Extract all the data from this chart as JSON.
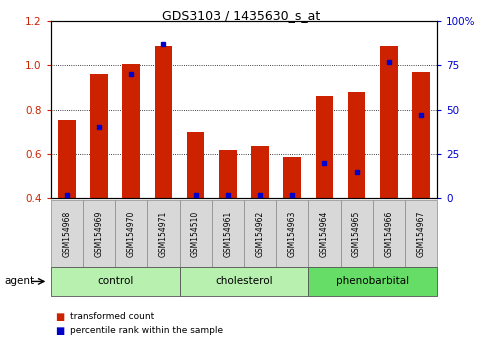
{
  "title": "GDS3103 / 1435630_s_at",
  "samples": [
    "GSM154968",
    "GSM154969",
    "GSM154970",
    "GSM154971",
    "GSM154510",
    "GSM154961",
    "GSM154962",
    "GSM154963",
    "GSM154964",
    "GSM154965",
    "GSM154966",
    "GSM154967"
  ],
  "red_values": [
    0.755,
    0.96,
    1.005,
    1.09,
    0.7,
    0.618,
    0.638,
    0.585,
    0.86,
    0.88,
    1.09,
    0.97
  ],
  "blue_values": [
    2,
    40,
    70,
    87,
    2,
    2,
    2,
    2,
    20,
    15,
    77,
    47
  ],
  "group_labels": [
    "control",
    "cholesterol",
    "phenobarbital"
  ],
  "group_ranges": [
    [
      0,
      4
    ],
    [
      4,
      8
    ],
    [
      8,
      12
    ]
  ],
  "group_colors": [
    "#b8f0b0",
    "#b8f0b0",
    "#66dd66"
  ],
  "ylim_left": [
    0.4,
    1.2
  ],
  "ylim_right": [
    0,
    100
  ],
  "yticks_left": [
    0.4,
    0.6,
    0.8,
    1.0,
    1.2
  ],
  "yticks_right": [
    0,
    25,
    50,
    75,
    100
  ],
  "bar_color": "#cc2200",
  "dot_color": "#0000cc",
  "bar_width": 0.55,
  "agent_label": "agent",
  "legend_red": "transformed count",
  "legend_blue": "percentile rank within the sample"
}
